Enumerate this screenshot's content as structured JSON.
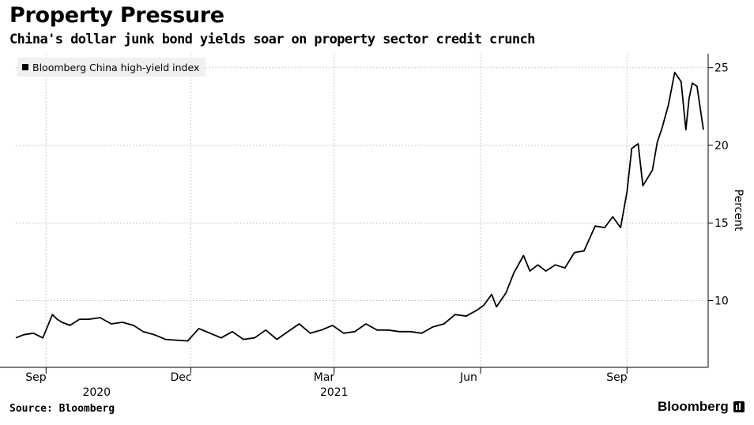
{
  "header": {
    "title": "Property Pressure",
    "subtitle": "China's dollar junk bond yields soar on property sector credit crunch"
  },
  "footer": {
    "source": "Source: Bloomberg",
    "brand": "Bloomberg"
  },
  "colors": {
    "line": "#000000",
    "grid": "#cccccc",
    "legend_bg": "#f0f0f0"
  },
  "chart_data": {
    "type": "line",
    "title": "Property Pressure",
    "subtitle": "China's dollar junk bond yields soar on property sector credit crunch",
    "xlabel": "",
    "ylabel": "Percent",
    "ylim": [
      5.7,
      25.9
    ],
    "yticks": [
      10,
      15,
      20,
      25
    ],
    "y_axis_side": "right",
    "grid": true,
    "legend_position": "top-left",
    "x_ticks": [
      {
        "label": "Sep",
        "year": "2020"
      },
      {
        "label": "Dec",
        "year": ""
      },
      {
        "label": "Mar",
        "year": "2021"
      },
      {
        "label": "Jun",
        "year": ""
      },
      {
        "label": "Sep",
        "year": ""
      }
    ],
    "x_tick_dates": [
      "2020-09-01",
      "2020-12-01",
      "2021-03-01",
      "2021-06-01",
      "2021-09-01"
    ],
    "x_range": [
      "2020-08-13",
      "2021-10-22"
    ],
    "series": [
      {
        "name": "Bloomberg China high-yield index",
        "x": [
          "2020-08-13",
          "2020-08-18",
          "2020-08-24",
          "2020-08-30",
          "2020-09-05",
          "2020-09-08",
          "2020-09-11",
          "2020-09-16",
          "2020-09-22",
          "2020-09-28",
          "2020-10-05",
          "2020-10-12",
          "2020-10-19",
          "2020-10-26",
          "2020-11-01",
          "2020-11-08",
          "2020-11-15",
          "2020-11-22",
          "2020-11-29",
          "2020-12-06",
          "2020-12-13",
          "2020-12-20",
          "2020-12-27",
          "2021-01-03",
          "2021-01-10",
          "2021-01-17",
          "2021-01-24",
          "2021-01-31",
          "2021-02-07",
          "2021-02-14",
          "2021-02-21",
          "2021-02-28",
          "2021-03-07",
          "2021-03-14",
          "2021-03-21",
          "2021-03-28",
          "2021-04-04",
          "2021-04-11",
          "2021-04-18",
          "2021-04-25",
          "2021-05-02",
          "2021-05-09",
          "2021-05-16",
          "2021-05-23",
          "2021-05-30",
          "2021-06-03",
          "2021-06-08",
          "2021-06-11",
          "2021-06-17",
          "2021-06-22",
          "2021-06-28",
          "2021-07-02",
          "2021-07-07",
          "2021-07-12",
          "2021-07-18",
          "2021-07-24",
          "2021-07-30",
          "2021-08-05",
          "2021-08-12",
          "2021-08-18",
          "2021-08-23",
          "2021-08-28",
          "2021-09-01",
          "2021-09-04",
          "2021-09-08",
          "2021-09-11",
          "2021-09-14",
          "2021-09-17",
          "2021-09-20",
          "2021-09-23",
          "2021-09-27",
          "2021-10-01",
          "2021-10-05",
          "2021-10-08",
          "2021-10-10",
          "2021-10-12",
          "2021-10-15",
          "2021-10-19"
        ],
        "values": [
          7.6,
          7.8,
          7.9,
          7.6,
          9.1,
          8.8,
          8.6,
          8.4,
          8.8,
          8.8,
          8.9,
          8.5,
          8.6,
          8.4,
          8.0,
          7.8,
          7.5,
          7.45,
          7.4,
          8.2,
          7.9,
          7.6,
          8.0,
          7.5,
          7.6,
          8.1,
          7.5,
          8.0,
          8.5,
          7.9,
          8.1,
          8.4,
          7.9,
          8.0,
          8.5,
          8.1,
          8.1,
          8.0,
          8.0,
          7.9,
          8.3,
          8.5,
          9.1,
          9.0,
          9.4,
          9.7,
          10.4,
          9.6,
          10.5,
          11.8,
          12.9,
          11.9,
          12.3,
          11.9,
          12.3,
          12.1,
          13.1,
          13.2,
          14.8,
          14.7,
          15.4,
          14.7,
          17.0,
          19.8,
          20.1,
          17.4,
          17.9,
          18.4,
          20.2,
          21.1,
          22.6,
          24.7,
          24.1,
          21.0,
          23.0,
          24.0,
          23.8,
          21.0
        ]
      }
    ]
  }
}
